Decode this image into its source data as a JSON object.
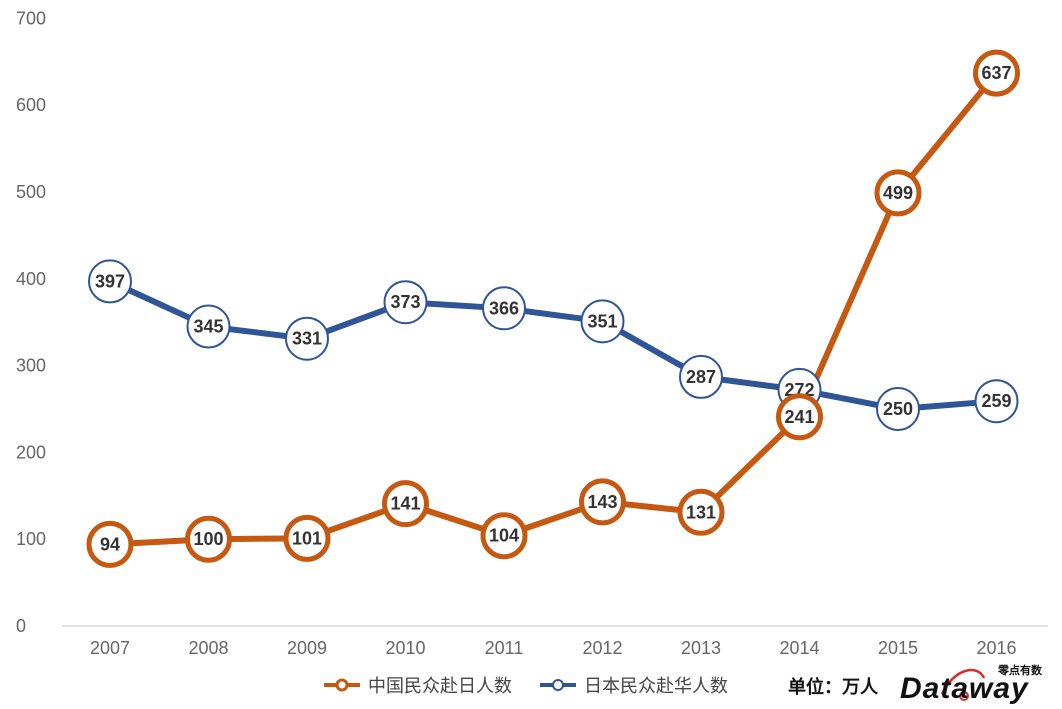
{
  "chart_data": {
    "type": "line",
    "categories": [
      "2007",
      "2008",
      "2009",
      "2010",
      "2011",
      "2012",
      "2013",
      "2014",
      "2015",
      "2016"
    ],
    "ylim": [
      0,
      700
    ],
    "yticks": [
      0,
      100,
      200,
      300,
      400,
      500,
      600,
      700
    ],
    "series": [
      {
        "name": "中国民众赴日人数",
        "color": "#c65911",
        "values": [
          94,
          100,
          101,
          141,
          104,
          143,
          131,
          241,
          499,
          637
        ]
      },
      {
        "name": "日本民众赴华人数",
        "color": "#2f5597",
        "values": [
          397,
          345,
          331,
          373,
          366,
          351,
          287,
          272,
          250,
          259
        ]
      }
    ],
    "unit_label": "单位：万人",
    "grid": false,
    "legend_position": "bottom"
  },
  "logo": {
    "text": "Dataway",
    "subtext": "零点有数",
    "accent_color": "#d62c2c"
  }
}
